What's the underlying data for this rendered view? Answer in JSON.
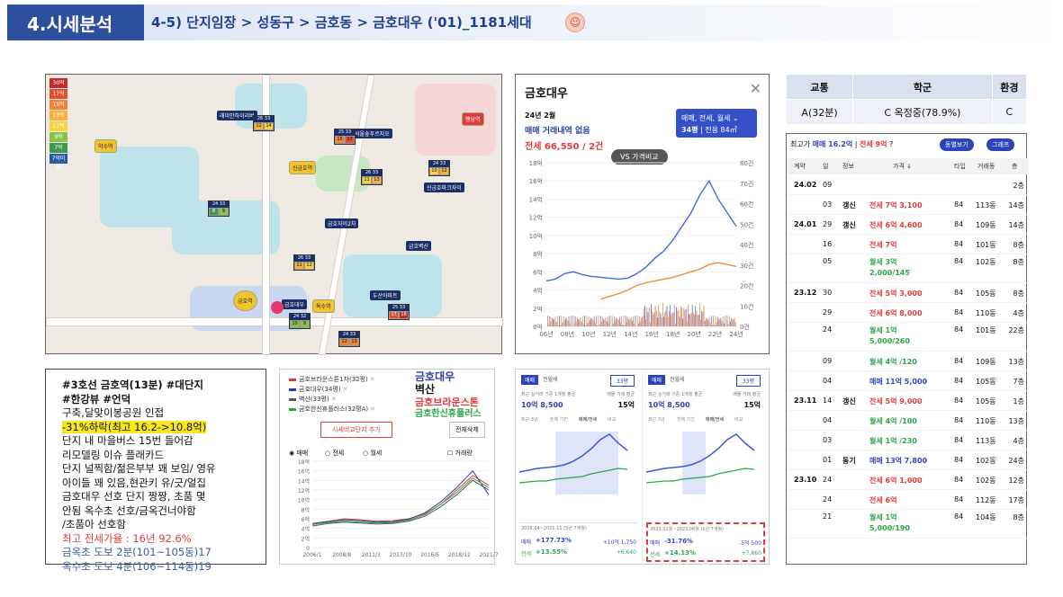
{
  "header": {
    "section": "4.시세분석",
    "title": "4-5) 단지임장 > 성동구 > 금호동 > 금호대우 ('01)_1181세대"
  },
  "map": {
    "legend": [
      {
        "label": "30억",
        "color": "#c42a2a"
      },
      {
        "label": "17억",
        "color": "#e24f2f"
      },
      {
        "label": "15억",
        "color": "#f0833a"
      },
      {
        "label": "13억",
        "color": "#f6b03b"
      },
      {
        "label": "11억",
        "color": "#f4d33e"
      },
      {
        "label": "9억",
        "color": "#8ac24a"
      },
      {
        "label": "7억",
        "color": "#3f9a4a"
      },
      {
        "label": "7억미만",
        "color": "#2c5aa0"
      }
    ],
    "stations": [
      "약수역",
      "신금호역",
      "옥수역",
      "금호역",
      "행당역"
    ],
    "labels": [
      "금호대우",
      "서울숲푸르지오",
      "금호자이2차",
      "래미안하이리버",
      "금호벽산",
      "신금호파크자이",
      "두산아파트"
    ]
  },
  "price_chart": {
    "title": "금호대우",
    "date": "24년 2월",
    "no_trade": "매매 거래내역 없음",
    "jeonse": "전세 66,550 / 2건",
    "selector_line1": "매매, 전세, 월세",
    "selector_line2": "34평",
    "selector_area": "전용 84㎡",
    "vs_label": "VS 가격비교",
    "y_left": [
      "18억",
      "16억",
      "14억",
      "12억",
      "10억",
      "8억",
      "6억",
      "4억",
      "2억",
      "0억"
    ],
    "y_right": [
      "80건",
      "70건",
      "60건",
      "50건",
      "40건",
      "30건",
      "20건",
      "10건",
      "0건"
    ],
    "x_labels": [
      "06년",
      "08년",
      "10년",
      "12년",
      "14년",
      "16년",
      "18년",
      "20년",
      "22년",
      "24년"
    ]
  },
  "school_table": {
    "headers": [
      "교통",
      "학군",
      "환경"
    ],
    "values": [
      "A(32분)",
      "C 옥정중(78.9%)",
      "C"
    ]
  },
  "tx": {
    "top_label": "최고가",
    "top_value": "매매 16.2억",
    "top_sep": "|",
    "top_jeonse": "전세 9억",
    "btn1": "동별보기",
    "btn2": "그래프",
    "cols": [
      "계약",
      "일",
      "정보",
      "가격 ↓",
      "타입",
      "거래동",
      "층"
    ],
    "rows": [
      {
        "ym": "24.02",
        "d": "09",
        "info": "",
        "price": "",
        "ptype": "",
        "t": "",
        "dong": "",
        "fl": "2층"
      },
      {
        "ym": "",
        "d": "03",
        "info": "갱신",
        "price": "전세 7억 3,100",
        "ptype": "red",
        "t": "84",
        "dong": "113동",
        "fl": "14층"
      },
      {
        "ym": "24.01",
        "d": "29",
        "info": "갱신",
        "price": "전세 6억 4,600",
        "ptype": "red",
        "t": "84",
        "dong": "109동",
        "fl": "14층"
      },
      {
        "ym": "",
        "d": "16",
        "info": "",
        "price": "전세 7억",
        "ptype": "red",
        "t": "84",
        "dong": "101동",
        "fl": "8층"
      },
      {
        "ym": "",
        "d": "05",
        "info": "",
        "price": "월세 3억",
        "price2": "2,000/145",
        "ptype": "grn",
        "t": "84",
        "dong": "102동",
        "fl": "8층"
      },
      {
        "ym": "23.12",
        "d": "30",
        "info": "",
        "price": "전세 5억 3,000",
        "ptype": "red",
        "t": "84",
        "dong": "105동",
        "fl": "8층"
      },
      {
        "ym": "",
        "d": "29",
        "info": "",
        "price": "전세 6억 8,000",
        "ptype": "red",
        "t": "84",
        "dong": "110동",
        "fl": "4층"
      },
      {
        "ym": "",
        "d": "24",
        "info": "",
        "price": "월세 1억",
        "price2": "5,000/260",
        "ptype": "grn",
        "t": "84",
        "dong": "101동",
        "fl": "22층"
      },
      {
        "ym": "",
        "d": "09",
        "info": "",
        "price": "월세 4억 /120",
        "ptype": "grn",
        "t": "84",
        "dong": "109동",
        "fl": "13층"
      },
      {
        "ym": "",
        "d": "04",
        "info": "",
        "price": "매매 11억 5,000",
        "ptype": "blu",
        "t": "84",
        "dong": "105동",
        "fl": "7층"
      },
      {
        "ym": "23.11",
        "d": "14",
        "info": "갱신",
        "price": "전세 5억 9,000",
        "ptype": "red",
        "t": "84",
        "dong": "105동",
        "fl": "1층"
      },
      {
        "ym": "",
        "d": "04",
        "info": "",
        "price": "월세 4억 /100",
        "ptype": "grn",
        "t": "84",
        "dong": "110동",
        "fl": "13층"
      },
      {
        "ym": "",
        "d": "03",
        "info": "",
        "price": "월세 1억 /230",
        "ptype": "grn",
        "t": "84",
        "dong": "113동",
        "fl": "4층"
      },
      {
        "ym": "",
        "d": "01",
        "info": "동기",
        "price": "매매 13억 7,800",
        "ptype": "blu",
        "t": "84",
        "dong": "102동",
        "fl": "24층"
      },
      {
        "ym": "23.10",
        "d": "24",
        "info": "",
        "price": "전세 6억 1,000",
        "ptype": "red",
        "t": "84",
        "dong": "102동",
        "fl": "12층"
      },
      {
        "ym": "",
        "d": "24",
        "info": "",
        "price": "전세 6억",
        "ptype": "red",
        "t": "84",
        "dong": "112동",
        "fl": "17층"
      },
      {
        "ym": "",
        "d": "21",
        "info": "",
        "price": "월세 1억",
        "price2": "5,000/190",
        "ptype": "grn",
        "t": "84",
        "dong": "104동",
        "fl": "8층"
      }
    ]
  },
  "notes": {
    "l1": "#3호선 금호역(13분) #대단지",
    "l2": "#한강뷰 #언덕",
    "l3": "구축,달맞이봉공원 인접",
    "l4": "-31%하락(최고 16.2->10.8억)",
    "l5": "단지 내 마을버스 15번 들어감",
    "l6": "리모델링 이슈 플래카드",
    "l7": "단지 널찍함/젊은부부 꽤 보임/ 영유",
    "l8": "아이들 꽤 있음,현관키 유/긋/얼집",
    "l9": "금호대우 선호 단지 짱짱, 초품 몇",
    "l10": "안됨 옥수초 선호/금옥건너야함",
    "l11": "/초품아 선호함",
    "l12": "최고 전세가율 : 16년 92.6%",
    "l13": "금옥초 도보 2분(101~105동)17",
    "l14": "옥수초 도보 4분(106~114동)19"
  },
  "compare": {
    "items": [
      {
        "name": "금호브라운스톤1차(32평)",
        "color": "#e23b3b"
      },
      {
        "name": "금호대우(34평)",
        "color": "#2a3fa8"
      },
      {
        "name": "벽산(33평)",
        "color": "#555"
      },
      {
        "name": "금호한신휴플러스(32평A)",
        "color": "#2ea54a"
      }
    ],
    "overlay": [
      "금호대우",
      "벽산",
      "금호브라운스톤",
      "금호한신휴플러스"
    ],
    "btn_add": "시세비교단지 추가",
    "btn_del": "전체삭제",
    "tabs": [
      "매매",
      "전세",
      "월세",
      "거래량"
    ],
    "y": [
      "18억",
      "16억",
      "14억",
      "12억",
      "10억",
      "8억",
      "6억",
      "4억",
      "2억",
      "0"
    ],
    "x": [
      "2006/1",
      "2008/8",
      "2011/3",
      "2013/10",
      "2016/5",
      "2018/12",
      "2021/7"
    ]
  },
  "app": {
    "left": {
      "tab1": "매매",
      "tab2": "전월세",
      "sel": "33평",
      "head": "최근 실거래 기준 1개월 평균",
      "price": "10억 8,500",
      "fl_label": "매물 거래 평균",
      "fl": "15억",
      "tabs": [
        "최근 3년",
        "전체 기간",
        "매매/전세",
        "비교"
      ],
      "period": "2016.04~2021.11 (5년 7개월)",
      "m_label": "매매",
      "m_val": "+177.73%",
      "m_amt": "+10억 1,750",
      "j_label": "전세",
      "j_val": "+13.55%",
      "j_amt": "+6,640"
    },
    "right": {
      "tab1": "매매",
      "tab2": "전월세",
      "sel": "33평",
      "head": "최근 실거래 기준 1개월 평균",
      "price": "10억 8,500",
      "fl_label": "매물 거래 평균",
      "fl": "15억",
      "tabs": [
        "최근 3년",
        "전체 기간",
        "매매/전세",
        "비교"
      ],
      "period": "2021.11월~2023.06월 (1년 7개월)",
      "m_label": "매매",
      "m_val": "-31.76%",
      "m_amt": "-5억 500",
      "j_label": "전세",
      "j_val": "+14.13%",
      "j_amt": "+7,860"
    }
  }
}
